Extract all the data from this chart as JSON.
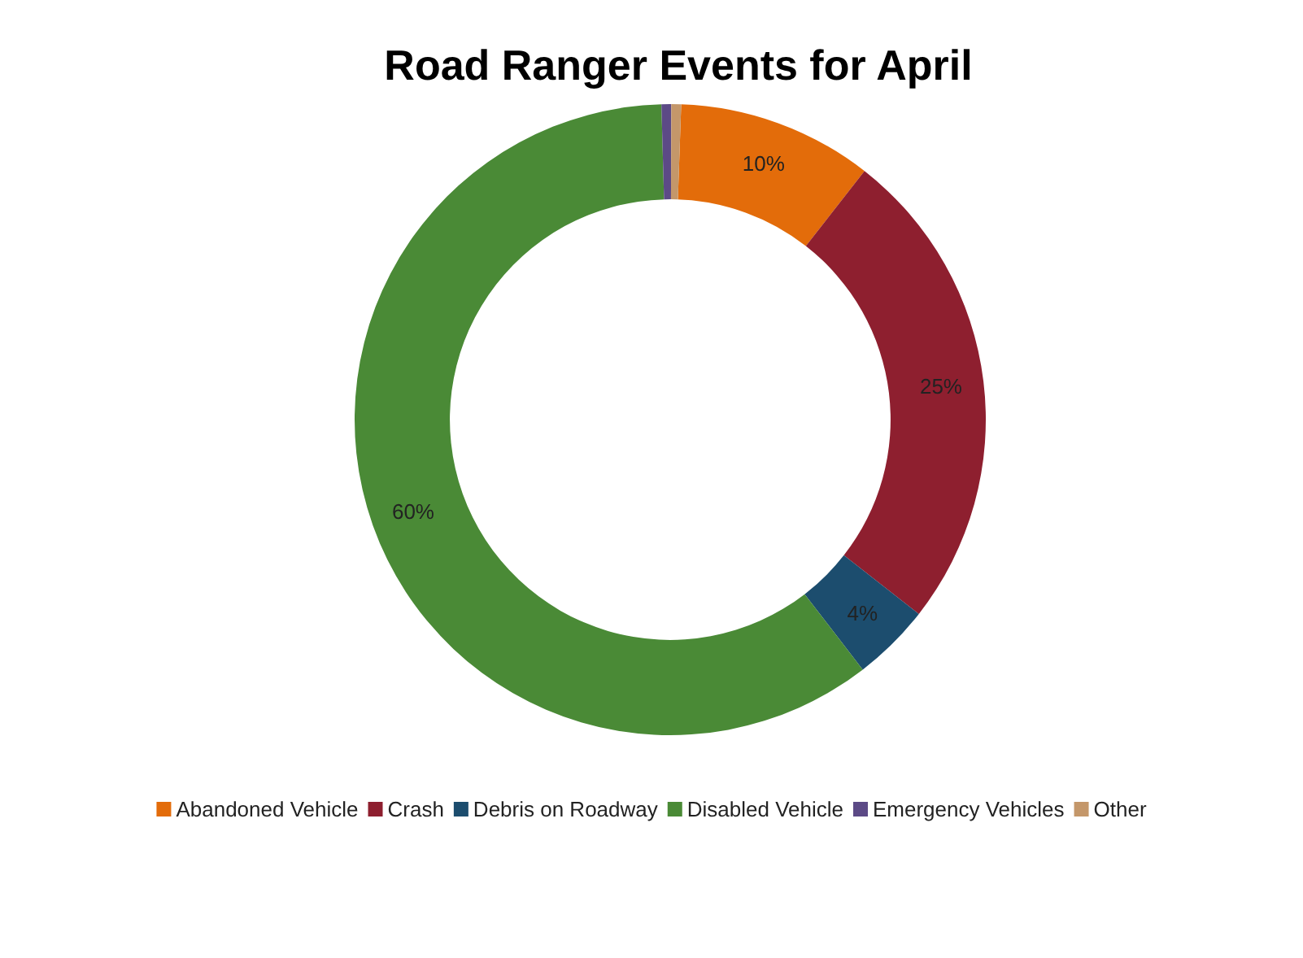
{
  "chart_data": {
    "type": "donut",
    "title": "Road Ranger Events for April",
    "categories": [
      "Abandoned Vehicle",
      "Crash",
      "Debris on Roadway",
      "Disabled Vehicle",
      "Emergency Vehicles",
      "Other"
    ],
    "values": [
      10,
      25,
      4,
      60,
      0.5,
      0.5
    ],
    "colors": [
      "#e36c0a",
      "#8e1f2f",
      "#1c4d6e",
      "#4a8a36",
      "#5c4a86",
      "#c4976a"
    ],
    "value_labels": [
      "10%",
      "25%",
      "4%",
      "60%",
      null,
      null
    ],
    "legend": "bottom"
  }
}
